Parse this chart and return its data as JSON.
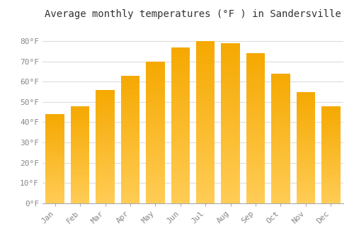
{
  "title": "Average monthly temperatures (°F ) in Sandersville",
  "months": [
    "Jan",
    "Feb",
    "Mar",
    "Apr",
    "May",
    "Jun",
    "Jul",
    "Aug",
    "Sep",
    "Oct",
    "Nov",
    "Dec"
  ],
  "values": [
    44,
    48,
    56,
    63,
    70,
    77,
    80,
    79,
    74,
    64,
    55,
    48
  ],
  "bar_color_top": "#F5A800",
  "bar_color_bottom": "#FFCC55",
  "background_color": "#FFFFFF",
  "grid_color": "#DDDDDD",
  "ylim": [
    0,
    88
  ],
  "ytick_step": 10,
  "title_fontsize": 10,
  "tick_fontsize": 8,
  "tick_label_color": "#888888",
  "title_color": "#333333",
  "font_family": "monospace",
  "bar_width": 0.75
}
